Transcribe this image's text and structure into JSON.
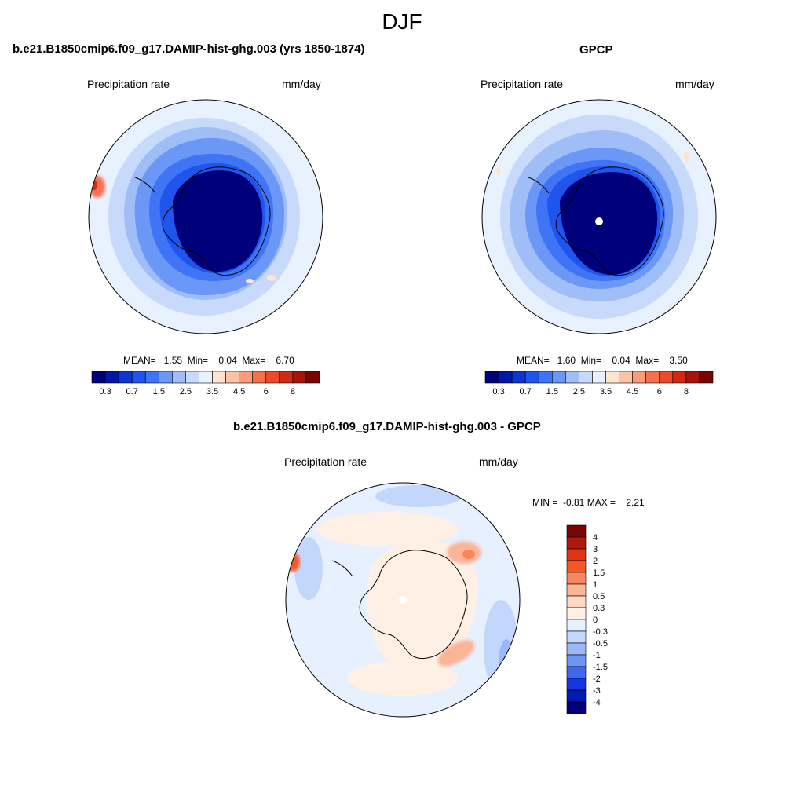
{
  "figure": {
    "title": "DJF"
  },
  "panels": [
    {
      "title": "b.e21.B1850cmip6.f09_g17.DAMIP-hist-ghg.003 (yrs 1850-1874)",
      "left_label": "Precipitation rate",
      "right_label": "mm/day",
      "stats": "MEAN=   1.55  Min=    0.04  Max=    6.70"
    },
    {
      "title": "GPCP",
      "left_label": "Precipitation rate",
      "right_label": "mm/day",
      "stats": "MEAN=   1.60  Min=    0.04  Max=    3.50"
    },
    {
      "title": "b.e21.B1850cmip6.f09_g17.DAMIP-hist-ghg.003 - GPCP",
      "left_label": "Precipitation rate",
      "right_label": "mm/day",
      "stats": "MIN =  -0.81 MAX =    2.21"
    }
  ],
  "chart_data": [
    {
      "type": "heatmap",
      "projection": "south-polar-stereographic",
      "field": "model precipitation rate",
      "colorbar": {
        "orientation": "horizontal",
        "tick_labels": [
          "0.3",
          "0.7",
          "1.5",
          "2.5",
          "3.5",
          "4.5",
          "6",
          "8"
        ],
        "levels": [
          0.2,
          0.3,
          0.5,
          0.7,
          1,
          1.5,
          2,
          2.5,
          3,
          3.5,
          4,
          4.5,
          5,
          6,
          7,
          8
        ],
        "colors": [
          "#00007a",
          "#0018a6",
          "#0f35d0",
          "#1f55ec",
          "#3e74f5",
          "#6b97f6",
          "#9fbdf7",
          "#c7dafc",
          "#e8f2fe",
          "#ffe4d0",
          "#fcc2a4",
          "#fa9c7c",
          "#f4714e",
          "#ec4a2a",
          "#d22a12",
          "#a8130a",
          "#7a0403"
        ]
      },
      "mean": 1.55,
      "min": 0.04,
      "max": 6.7
    },
    {
      "type": "heatmap",
      "projection": "south-polar-stereographic",
      "field": "observed precipitation rate",
      "colorbar": {
        "orientation": "horizontal",
        "tick_labels": [
          "0.3",
          "0.7",
          "1.5",
          "2.5",
          "3.5",
          "4.5",
          "6",
          "8"
        ],
        "levels": [
          0.2,
          0.3,
          0.5,
          0.7,
          1,
          1.5,
          2,
          2.5,
          3,
          3.5,
          4,
          4.5,
          5,
          6,
          7,
          8
        ],
        "colors": [
          "#00007a",
          "#0018a6",
          "#0f35d0",
          "#1f55ec",
          "#3e74f5",
          "#6b97f6",
          "#9fbdf7",
          "#c7dafc",
          "#e8f2fe",
          "#ffe4d0",
          "#fcc2a4",
          "#fa9c7c",
          "#f4714e",
          "#ec4a2a",
          "#d22a12",
          "#a8130a",
          "#7a0403"
        ]
      },
      "mean": 1.6,
      "min": 0.04,
      "max": 3.5
    },
    {
      "type": "heatmap",
      "projection": "south-polar-stereographic",
      "field": "difference model minus observations",
      "colorbar": {
        "orientation": "vertical",
        "tick_labels": [
          "4",
          "3",
          "2",
          "1.5",
          "1",
          "0.5",
          "0.3",
          "0",
          "-0.3",
          "-0.5",
          "-1",
          "-1.5",
          "-2",
          "-3",
          "-4"
        ],
        "colors": [
          "#7a0403",
          "#b0170a",
          "#de3412",
          "#f85524",
          "#f9875e",
          "#fab496",
          "#fdd8c2",
          "#fff0e6",
          "#e6f0fe",
          "#c3d6fb",
          "#9ab8f7",
          "#6d95f3",
          "#3c67ee",
          "#1536df",
          "#001bb3",
          "#00007d"
        ]
      },
      "min": -0.81,
      "max": 2.21
    }
  ]
}
